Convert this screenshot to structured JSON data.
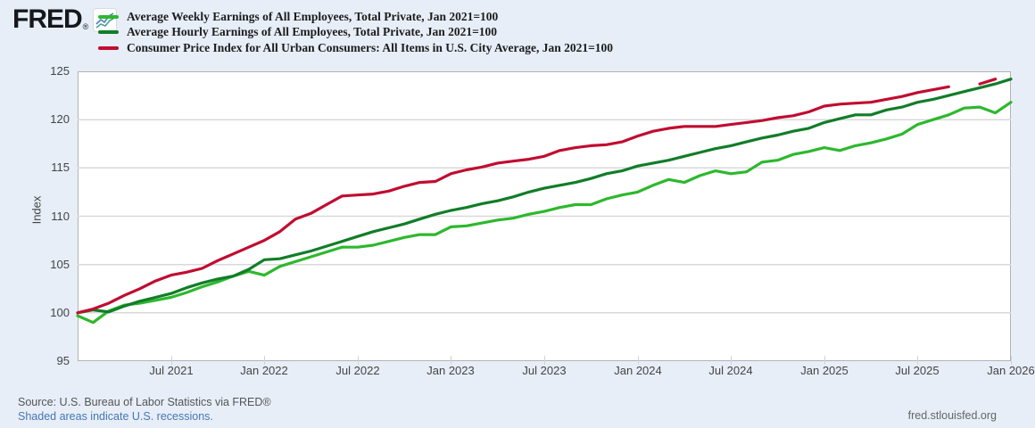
{
  "logo": {
    "brand": "FRED",
    "registered": "®"
  },
  "legend": [
    {
      "label": "Average Weekly Earnings of All Employees, Total Private, Jan 2021=100",
      "color": "#2db82d"
    },
    {
      "label": "Average Hourly Earnings of All Employees, Total Private, Jan 2021=100",
      "color": "#117d28"
    },
    {
      "label": "Consumer Price Index for All Urban Consumers: All Items in U.S. City Average, Jan 2021=100",
      "color": "#c10c30"
    }
  ],
  "chart_data": {
    "type": "line",
    "title": "",
    "ylabel": "Index",
    "ylim": [
      95,
      125
    ],
    "y_ticks": [
      95,
      100,
      105,
      110,
      115,
      120,
      125
    ],
    "x_range_months_from_jan2021": [
      0,
      60
    ],
    "x_ticks": [
      {
        "label": "Jul 2021",
        "month": 6
      },
      {
        "label": "Jan 2022",
        "month": 12
      },
      {
        "label": "Jul 2022",
        "month": 18
      },
      {
        "label": "Jan 2023",
        "month": 24
      },
      {
        "label": "Jul 2023",
        "month": 30
      },
      {
        "label": "Jan 2024",
        "month": 36
      },
      {
        "label": "Jul 2024",
        "month": 42
      },
      {
        "label": "Jan 2025",
        "month": 48
      },
      {
        "label": "Jul 2025",
        "month": 54
      },
      {
        "label": "Jan 2026",
        "month": 60
      }
    ],
    "grid": true,
    "legend_position": "top",
    "series": [
      {
        "name": "Average Weekly Earnings of All Employees, Total Private, Jan 2021=100",
        "color": "#2db82d",
        "segments": [
          {
            "start_month": 0,
            "values": [
              99.7,
              99.0,
              100.2,
              100.8,
              101.0,
              101.3,
              101.6,
              102.1,
              102.7,
              103.2,
              103.8,
              104.3,
              103.9,
              104.8,
              105.3,
              105.8,
              106.3,
              106.8,
              106.8,
              107.0,
              107.4,
              107.8,
              108.1,
              108.1,
              108.9,
              109.0,
              109.3,
              109.6,
              109.8,
              110.2,
              110.5,
              110.9,
              111.2,
              111.2,
              111.8,
              112.2,
              112.5,
              113.2,
              113.8,
              113.5,
              114.2,
              114.7,
              114.4,
              114.6,
              115.6,
              115.8,
              116.4,
              116.7,
              117.1,
              116.8,
              117.3,
              117.6,
              118.0,
              118.5,
              119.5,
              120.0,
              120.5,
              121.2,
              121.3,
              120.7,
              121.8
            ]
          }
        ]
      },
      {
        "name": "Average Hourly Earnings of All Employees, Total Private, Jan 2021=100",
        "color": "#117d28",
        "segments": [
          {
            "start_month": 0,
            "values": [
              100.0,
              100.3,
              100.1,
              100.7,
              101.2,
              101.6,
              102.0,
              102.6,
              103.1,
              103.5,
              103.8,
              104.5,
              105.5,
              105.6,
              106.0,
              106.4,
              106.9,
              107.4,
              107.9,
              108.4,
              108.8,
              109.2,
              109.7,
              110.2,
              110.6,
              110.9,
              111.3,
              111.6,
              112.0,
              112.5,
              112.9,
              113.2,
              113.5,
              113.9,
              114.4,
              114.7,
              115.2,
              115.5,
              115.8,
              116.2,
              116.6,
              117.0,
              117.3,
              117.7,
              118.1,
              118.4,
              118.8,
              119.1,
              119.7,
              120.1,
              120.5,
              120.5,
              121.0,
              121.3,
              121.8,
              122.1,
              122.5,
              122.9,
              123.3,
              123.7,
              124.2
            ]
          }
        ]
      },
      {
        "name": "Consumer Price Index for All Urban Consumers: All Items in U.S. City Average, Jan 2021=100",
        "color": "#c10c30",
        "segments": [
          {
            "start_month": 0,
            "values": [
              100.0,
              100.4,
              101.0,
              101.8,
              102.5,
              103.3,
              103.9,
              104.2,
              104.6,
              105.4,
              106.1,
              106.8,
              107.5,
              108.4,
              109.7,
              110.3,
              111.2,
              112.1,
              112.2,
              112.3,
              112.6,
              113.1,
              113.5,
              113.6,
              114.4,
              114.8,
              115.1,
              115.5,
              115.7,
              115.9,
              116.2,
              116.8,
              117.1,
              117.3,
              117.4,
              117.7,
              118.3,
              118.8,
              119.1,
              119.3,
              119.3,
              119.3,
              119.5,
              119.7,
              119.9,
              120.2,
              120.4,
              120.8,
              121.4,
              121.6,
              121.7,
              121.8,
              122.1,
              122.4,
              122.8,
              123.1,
              123.4
            ]
          },
          {
            "start_month": 58,
            "values": [
              123.7,
              124.2
            ]
          }
        ]
      }
    ]
  },
  "footer": {
    "source": "Source: U.S. Bureau of Labor Statistics via FRED®",
    "recessions_note": "Shaded areas indicate U.S. recessions.",
    "site_url": "fred.stlouisfed.org"
  }
}
